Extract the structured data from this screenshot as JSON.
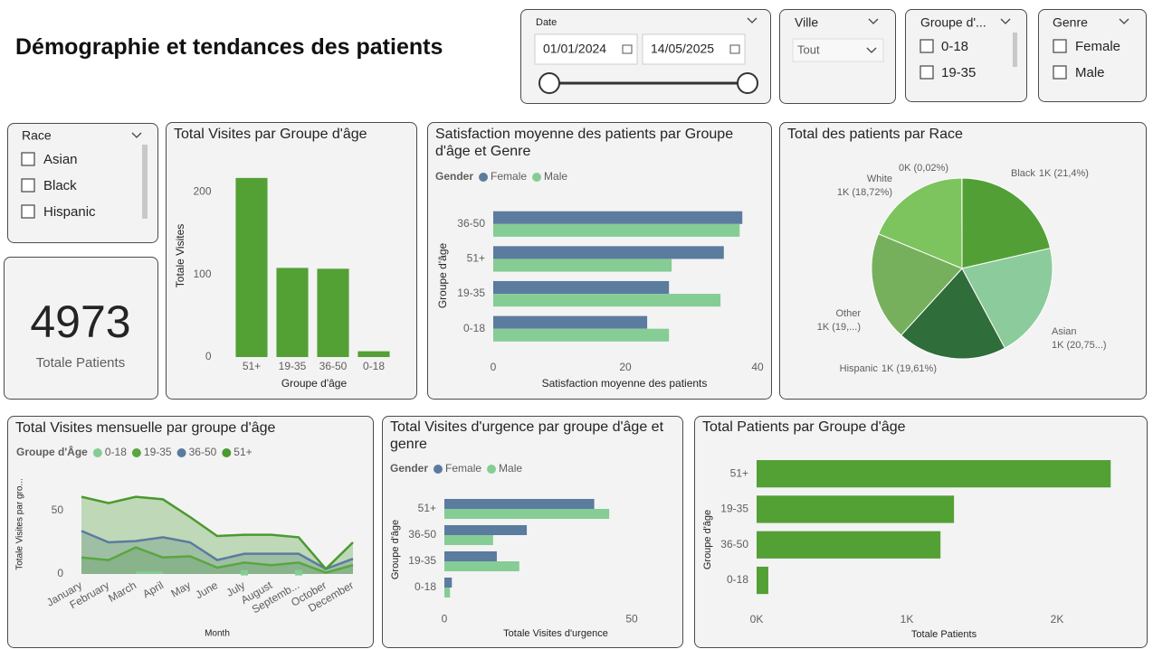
{
  "header": {
    "title": "Démographie et tendances des patients"
  },
  "slicers": {
    "date": {
      "title": "Date",
      "start": "01/01/2024",
      "end": "14/05/2025"
    },
    "ville": {
      "title": "Ville",
      "value": "Tout"
    },
    "groupe": {
      "title": "Groupe d'...",
      "items": [
        "0-18",
        "19-35"
      ]
    },
    "genre": {
      "title": "Genre",
      "items": [
        "Female",
        "Male"
      ]
    },
    "race": {
      "title": "Race",
      "items": [
        "Asian",
        "Black",
        "Hispanic"
      ]
    }
  },
  "card": {
    "value": 4973,
    "label": "Totale Patients"
  },
  "chart_data": [
    {
      "type": "bar",
      "title": "Total Visites par Groupe d'âge",
      "xlabel": "Groupe d'âge",
      "ylabel": "Totale Visites",
      "categories": [
        "51+",
        "19-35",
        "36-50",
        "0-18"
      ],
      "values": [
        217,
        108,
        107,
        7
      ],
      "color": "#53a035",
      "ylim": [
        0,
        230
      ],
      "yticks": [
        0,
        100,
        200
      ]
    },
    {
      "type": "bar",
      "orientation": "horizontal",
      "title": "Satisfaction moyenne des patients par Groupe d'âge et Genre",
      "legend_title": "Gender",
      "xlabel": "Satisfaction moyenne des patients",
      "ylabel": "Groupe d'âge",
      "categories": [
        "36-50",
        "51+",
        "19-35",
        "0-18"
      ],
      "series": [
        {
          "name": "Female",
          "color": "#5b7b9f",
          "values": [
            37.7,
            34.9,
            26.6,
            23.3
          ]
        },
        {
          "name": "Male",
          "color": "#86cc95",
          "values": [
            37.3,
            27.0,
            34.4,
            26.6
          ]
        }
      ],
      "xlim": [
        0,
        40
      ],
      "xticks": [
        0,
        20,
        40
      ]
    },
    {
      "type": "pie",
      "title": "Total des patients par Race",
      "categories": [
        "Black",
        "Asian",
        "Hispanic",
        "Other",
        "White",
        null
      ],
      "values": [
        21.4,
        20.75,
        19.61,
        19.5,
        18.72,
        0.02
      ],
      "value_labels": [
        "1K (21,4%)",
        "1K (20,75...)",
        "1K (19,61%)",
        "1K (19,...)",
        "1K (18,72%)",
        "0K (0,02%)"
      ],
      "colors": [
        "#52a035",
        "#8ccb9b",
        "#2f6d3b",
        "#77b05d",
        "#7dc35e",
        "#c8e6c9"
      ]
    },
    {
      "type": "area",
      "title": "Total Visites mensuelle par groupe d'âge",
      "legend_title": "Groupe d'Âge",
      "xlabel": "Month",
      "ylabel": "Totale Visites par gro...",
      "categories": [
        "January",
        "February",
        "March",
        "April",
        "May",
        "June",
        "July",
        "August",
        "Septemb...",
        "October",
        "December"
      ],
      "series": [
        {
          "name": "0-18",
          "color": "#86cc95",
          "values": [
            null,
            null,
            1,
            1,
            null,
            null,
            1,
            null,
            1,
            null,
            null
          ]
        },
        {
          "name": "19-35",
          "color": "#5aa63f",
          "values": [
            13,
            11,
            21,
            13,
            14,
            5,
            9,
            7,
            9,
            1,
            7
          ]
        },
        {
          "name": "36-50",
          "color": "#5b7b9f",
          "values": [
            34,
            25,
            26,
            29,
            25,
            11,
            16,
            16,
            16,
            4,
            12
          ]
        },
        {
          "name": "51+",
          "color": "#4a9a2f",
          "values": [
            61,
            56,
            61,
            59,
            45,
            30,
            31,
            31,
            29,
            4,
            25
          ]
        }
      ],
      "ylim": [
        0,
        80
      ],
      "yticks": [
        0,
        50
      ]
    },
    {
      "type": "bar",
      "orientation": "horizontal",
      "title": "Total Visites d'urgence par groupe d'âge et genre",
      "legend_title": "Gender",
      "xlabel": "Totale Visites d'urgence",
      "ylabel": "Groupe d'âge",
      "categories": [
        "51+",
        "36-50",
        "19-35",
        "0-18"
      ],
      "series": [
        {
          "name": "Female",
          "color": "#5b7b9f",
          "values": [
            40,
            22,
            14,
            2
          ]
        },
        {
          "name": "Male",
          "color": "#86cc95",
          "values": [
            44,
            13,
            20,
            1.5
          ]
        }
      ],
      "xlim": [
        0,
        60
      ],
      "xticks": [
        0,
        50
      ]
    },
    {
      "type": "bar",
      "orientation": "horizontal",
      "title": "Total Patients par Groupe d'âge",
      "xlabel": "Totale Patients",
      "ylabel": "Groupe d'âge",
      "categories": [
        "51+",
        "19-35",
        "36-50",
        "0-18"
      ],
      "values": [
        2357,
        1314,
        1224,
        78
      ],
      "color": "#53a035",
      "xlim": [
        0,
        2450
      ],
      "xticks": [
        {
          "value": 0,
          "label": "0K"
        },
        {
          "value": 1000,
          "label": "1K"
        },
        {
          "value": 2000,
          "label": "2K"
        }
      ]
    }
  ]
}
